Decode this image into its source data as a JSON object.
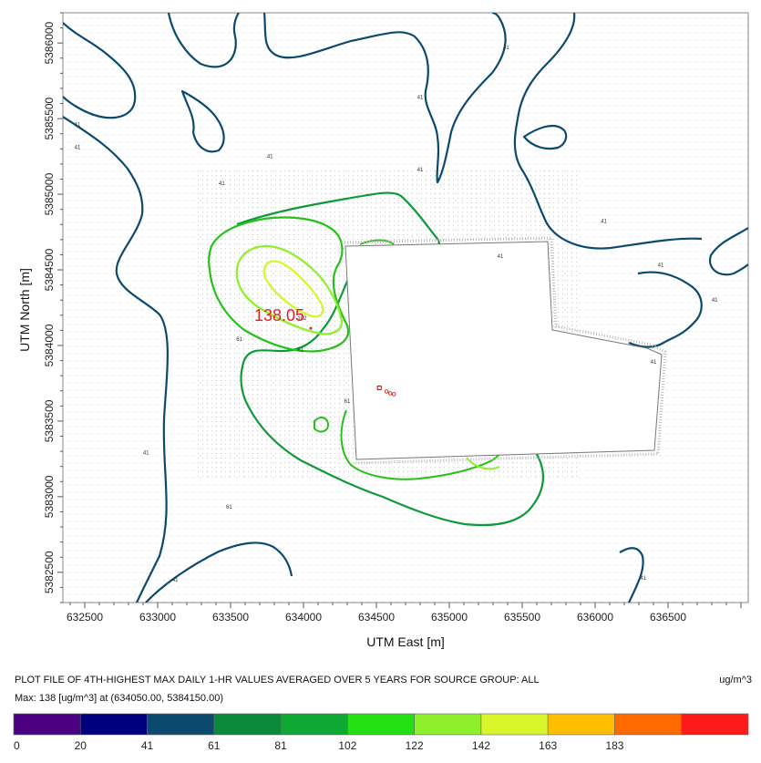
{
  "chart_data": {
    "type": "contour",
    "xlabel": "UTM East [m]",
    "ylabel": "UTM North [m]",
    "xlim": [
      632350,
      637050
    ],
    "ylim": [
      5382300,
      5386200
    ],
    "xticks": [
      632500,
      633000,
      633500,
      634000,
      634500,
      635000,
      635500,
      636000,
      636500
    ],
    "yticks": [
      5382500,
      5383000,
      5383500,
      5384000,
      5384500,
      5385000,
      5385500,
      5386000
    ],
    "contour_levels": [
      20,
      41,
      61,
      81,
      102,
      122,
      142,
      163,
      183
    ],
    "contour_labels": {
      "l41": "41",
      "l61": "61",
      "l81": "81",
      "l102": "102"
    },
    "max_value_label": "138.05",
    "max_location": [
      634050,
      5384150
    ],
    "source_location": [
      634520,
      5383720
    ],
    "legend": {
      "colors": [
        "#4b0082",
        "#00007f",
        "#0b4a6e",
        "#0a8a3a",
        "#10a834",
        "#22e012",
        "#8ef02a",
        "#d8f52a",
        "#ffbf00",
        "#ff6a00",
        "#ff1a1a"
      ],
      "labels": [
        "0",
        "20",
        "41",
        "61",
        "81",
        "102",
        "122",
        "142",
        "163",
        "183"
      ]
    },
    "caption": "PLOT FILE OF 4TH-HIGHEST MAX DAILY 1-HR VALUES AVERAGED OVER 5 YEARS FOR SOURCE GROUP: ALL",
    "units": "ug/m^3",
    "max_text": "Max:  138  [ug/m^3]  at  (634050.00, 5384150.00)"
  }
}
